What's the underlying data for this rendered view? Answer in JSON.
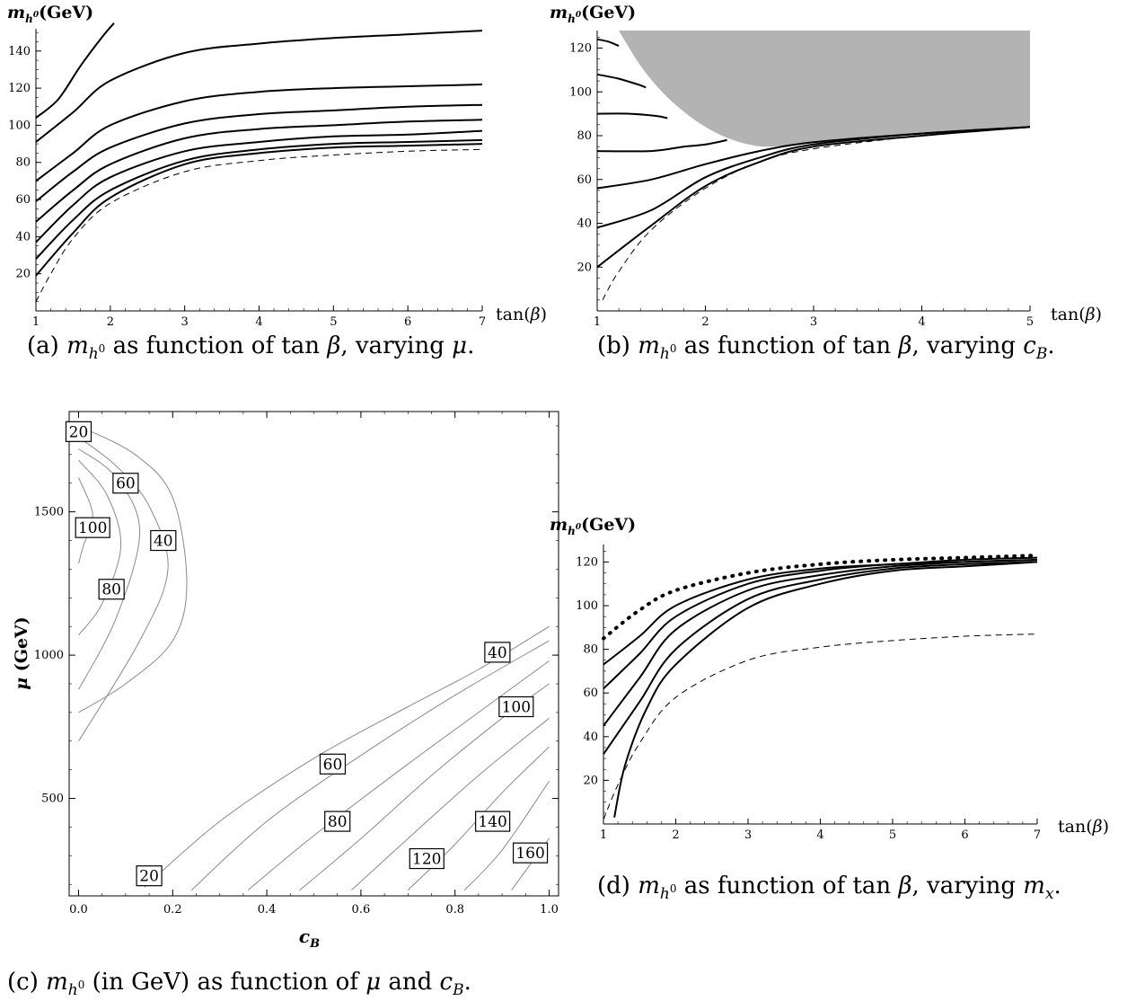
{
  "captions": {
    "a": "(a) m_h0 as function of tan β, varying μ.",
    "b": "(b) m_h0 as function of tan β, varying c_B.",
    "c": "(c) m_h0 (in GeV) as function of μ and c_B.",
    "d": "(d) m_h0 as function of tan β, varying m_x."
  },
  "chart_data": [
    {
      "id": "a",
      "type": "line",
      "xlabel": "tan(β)",
      "ylabel": "m_h0(GeV)",
      "xlim": [
        1,
        7
      ],
      "ylim": [
        0,
        152
      ],
      "xticks": [
        1,
        2,
        3,
        4,
        5,
        6,
        7
      ],
      "yticks": [
        20,
        40,
        60,
        80,
        100,
        120,
        140
      ],
      "series": [
        {
          "style": "solid",
          "x": [
            1,
            1.3,
            1.6,
            1.9,
            2.05
          ],
          "y": [
            104,
            114,
            132,
            148,
            155
          ]
        },
        {
          "style": "solid",
          "x": [
            1,
            1.5,
            2,
            3,
            4,
            5,
            6,
            7
          ],
          "y": [
            91,
            107,
            124,
            139,
            144,
            147,
            149,
            151
          ]
        },
        {
          "style": "solid",
          "x": [
            1,
            1.5,
            2,
            3,
            4,
            5,
            6,
            7
          ],
          "y": [
            70,
            85,
            100,
            113,
            118,
            120,
            121,
            122
          ]
        },
        {
          "style": "solid",
          "x": [
            1,
            1.5,
            2,
            3,
            4,
            5,
            6,
            7
          ],
          "y": [
            59,
            75,
            88,
            101,
            106,
            108,
            110,
            111
          ]
        },
        {
          "style": "solid",
          "x": [
            1,
            1.5,
            2,
            3,
            4,
            5,
            6,
            7
          ],
          "y": [
            48,
            65,
            79,
            93,
            98,
            100,
            102,
            103
          ]
        },
        {
          "style": "solid",
          "x": [
            1,
            1.5,
            2,
            3,
            4,
            5,
            6,
            7
          ],
          "y": [
            37,
            57,
            72,
            86,
            91,
            94,
            95,
            97
          ]
        },
        {
          "style": "solid",
          "x": [
            1,
            1.5,
            2,
            3,
            4,
            5,
            6,
            7
          ],
          "y": [
            28,
            49,
            65,
            81,
            87,
            90,
            91,
            92
          ]
        },
        {
          "style": "solid",
          "x": [
            1,
            1.5,
            2,
            3,
            4,
            5,
            6,
            7
          ],
          "y": [
            19,
            42,
            61,
            79,
            85,
            88,
            89,
            90
          ]
        },
        {
          "style": "dashed",
          "x": [
            1,
            1.2,
            1.5,
            2,
            3,
            4,
            5,
            6,
            7
          ],
          "y": [
            5,
            20,
            39,
            58,
            75,
            81,
            84,
            86,
            87
          ]
        }
      ]
    },
    {
      "id": "b",
      "type": "line",
      "xlabel": "tan(β)",
      "ylabel": "m_h0(GeV)",
      "xlim": [
        1,
        5
      ],
      "ylim": [
        0,
        128
      ],
      "xticks": [
        1,
        2,
        3,
        4,
        5
      ],
      "yticks": [
        20,
        40,
        60,
        80,
        100,
        120
      ],
      "shaded_region": {
        "color": "#b3b3b3",
        "boundary_x": [
          1.2,
          1.4,
          1.6,
          1.8,
          2.0,
          2.2,
          2.4,
          2.6,
          3.0,
          3.5,
          4.0,
          4.5,
          5.0
        ],
        "boundary_y": [
          128,
          112,
          100,
          91,
          84,
          79,
          76,
          75,
          77,
          79,
          81,
          83,
          84
        ]
      },
      "series": [
        {
          "style": "solid",
          "x": [
            1,
            1.1,
            1.2
          ],
          "y": [
            124,
            123,
            121
          ]
        },
        {
          "style": "solid",
          "x": [
            1,
            1.2,
            1.4,
            1.45
          ],
          "y": [
            108,
            106,
            103,
            102
          ]
        },
        {
          "style": "solid",
          "x": [
            1,
            1.3,
            1.55,
            1.65
          ],
          "y": [
            90,
            90,
            89,
            88
          ]
        },
        {
          "style": "solid",
          "x": [
            1,
            1.5,
            1.8,
            2.0,
            2.2
          ],
          "y": [
            73,
            73,
            75,
            76,
            78
          ]
        },
        {
          "style": "solid",
          "x": [
            1,
            1.5,
            2,
            2.5,
            3,
            4,
            5
          ],
          "y": [
            56,
            60,
            67,
            73,
            77,
            81,
            84
          ]
        },
        {
          "style": "solid",
          "x": [
            1,
            1.5,
            2,
            2.5,
            3,
            4,
            5
          ],
          "y": [
            38,
            46,
            61,
            70,
            76,
            81,
            84
          ]
        },
        {
          "style": "solid",
          "x": [
            1,
            1.5,
            2,
            2.5,
            3,
            4,
            5
          ],
          "y": [
            20,
            39,
            57,
            68,
            75,
            80,
            84
          ]
        },
        {
          "style": "dashed",
          "x": [
            1.05,
            1.2,
            1.5,
            2,
            2.5,
            3,
            4,
            5
          ],
          "y": [
            5,
            18,
            37,
            56,
            68,
            74,
            80,
            84
          ]
        }
      ]
    },
    {
      "id": "c",
      "type": "contour",
      "xlabel": "c_B",
      "ylabel": "μ (GeV)",
      "xlim": [
        -0.02,
        1.02
      ],
      "ylim": [
        160,
        1850
      ],
      "xticks": [
        "0.0",
        "0.2",
        "0.4",
        "0.6",
        "0.8",
        "1.0"
      ],
      "yticks": [
        500,
        1000,
        1500
      ],
      "contour_labels": [
        {
          "text": "20",
          "x": 0.0,
          "y": 1780
        },
        {
          "text": "60",
          "x": 0.1,
          "y": 1600
        },
        {
          "text": "100",
          "x": 0.03,
          "y": 1445
        },
        {
          "text": "40",
          "x": 0.18,
          "y": 1400
        },
        {
          "text": "80",
          "x": 0.07,
          "y": 1230
        },
        {
          "text": "40",
          "x": 0.89,
          "y": 1010
        },
        {
          "text": "100",
          "x": 0.93,
          "y": 820
        },
        {
          "text": "60",
          "x": 0.54,
          "y": 620
        },
        {
          "text": "80",
          "x": 0.55,
          "y": 420
        },
        {
          "text": "140",
          "x": 0.88,
          "y": 420
        },
        {
          "text": "120",
          "x": 0.74,
          "y": 290
        },
        {
          "text": "160",
          "x": 0.96,
          "y": 310
        },
        {
          "text": "20",
          "x": 0.15,
          "y": 230
        }
      ],
      "contours_left": [
        {
          "cb": [
            0.0,
            0.12,
            0.2,
            0.23,
            0.2,
            0.1,
            0.0
          ],
          "mu": [
            1800,
            1700,
            1550,
            1250,
            1050,
            900,
            800
          ]
        },
        {
          "cb": [
            0.0,
            0.08,
            0.15,
            0.19,
            0.13,
            0.0
          ],
          "mu": [
            1760,
            1660,
            1520,
            1300,
            1050,
            700
          ]
        },
        {
          "cb": [
            0.0,
            0.08,
            0.13,
            0.08,
            0.0
          ],
          "mu": [
            1720,
            1620,
            1430,
            1130,
            880
          ]
        },
        {
          "cb": [
            0.0,
            0.06,
            0.09,
            0.05,
            0.0
          ],
          "mu": [
            1680,
            1560,
            1380,
            1180,
            1070
          ]
        },
        {
          "cb": [
            0.0,
            0.03,
            0.01,
            0.0
          ],
          "mu": [
            1620,
            1490,
            1380,
            1320
          ]
        }
      ],
      "contours_right": [
        {
          "cb": [
            0.14,
            0.3,
            0.5,
            0.7,
            0.85,
            1.0
          ],
          "mu": [
            190,
            420,
            640,
            820,
            950,
            1100
          ]
        },
        {
          "cb": [
            0.24,
            0.4,
            0.6,
            0.8,
            1.0
          ],
          "mu": [
            180,
            420,
            650,
            860,
            1050
          ]
        },
        {
          "cb": [
            0.36,
            0.5,
            0.7,
            0.85,
            1.0
          ],
          "mu": [
            180,
            370,
            620,
            800,
            980
          ]
        },
        {
          "cb": [
            0.47,
            0.6,
            0.75,
            0.9,
            1.0
          ],
          "mu": [
            180,
            360,
            580,
            780,
            900
          ]
        },
        {
          "cb": [
            0.58,
            0.7,
            0.85,
            1.0
          ],
          "mu": [
            180,
            360,
            580,
            780
          ]
        },
        {
          "cb": [
            0.7,
            0.8,
            0.9,
            1.0
          ],
          "mu": [
            180,
            340,
            520,
            680
          ]
        },
        {
          "cb": [
            0.82,
            0.9,
            1.0
          ],
          "mu": [
            180,
            320,
            560
          ]
        },
        {
          "cb": [
            0.92,
            1.0
          ],
          "mu": [
            180,
            360
          ]
        }
      ]
    },
    {
      "id": "d",
      "type": "line",
      "xlabel": "tan(β)",
      "ylabel": "m_h0(GeV)",
      "xlim": [
        1,
        7
      ],
      "ylim": [
        0,
        128
      ],
      "xticks": [
        1,
        2,
        3,
        4,
        5,
        6,
        7
      ],
      "yticks": [
        20,
        40,
        60,
        80,
        100,
        120
      ],
      "series": [
        {
          "style": "dotted",
          "x": [
            1,
            1.5,
            2,
            3,
            4,
            5,
            6,
            7
          ],
          "y": [
            85,
            98,
            107,
            115,
            119,
            121,
            122,
            123
          ]
        },
        {
          "style": "solid",
          "x": [
            1,
            1.5,
            2,
            3,
            4,
            5,
            6,
            7
          ],
          "y": [
            73,
            86,
            100,
            112,
            117,
            119,
            121,
            122
          ]
        },
        {
          "style": "solid",
          "x": [
            1,
            1.5,
            2,
            3,
            4,
            5,
            6,
            7
          ],
          "y": [
            62,
            78,
            95,
            110,
            116,
            119,
            120,
            121
          ]
        },
        {
          "style": "solid",
          "x": [
            1,
            1.5,
            2,
            3,
            4,
            5,
            6,
            7
          ],
          "y": [
            45,
            67,
            89,
            107,
            114,
            118,
            120,
            121
          ]
        },
        {
          "style": "solid",
          "x": [
            1,
            1.5,
            2,
            3,
            4,
            5,
            6,
            7
          ],
          "y": [
            32,
            56,
            80,
            103,
            112,
            117,
            119,
            120
          ]
        },
        {
          "style": "solid",
          "x": [
            1.15,
            1.3,
            1.6,
            2,
            3,
            4,
            5,
            6,
            7
          ],
          "y": [
            3,
            27,
            53,
            73,
            99,
            110,
            116,
            118,
            120
          ]
        },
        {
          "style": "dashed",
          "x": [
            1,
            1.2,
            1.5,
            2,
            3,
            4,
            5,
            6,
            7
          ],
          "y": [
            2,
            18,
            37,
            58,
            75,
            81,
            84,
            86,
            87
          ]
        }
      ]
    }
  ]
}
